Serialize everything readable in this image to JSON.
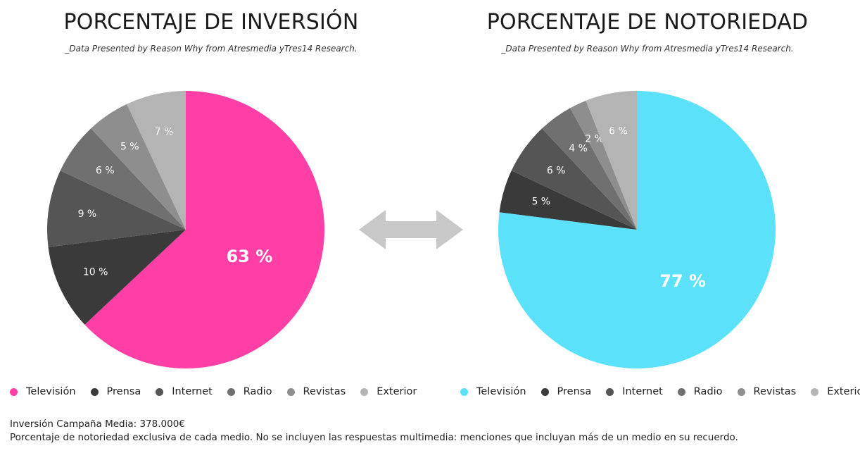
{
  "chart_data": [
    {
      "type": "pie",
      "title": "PORCENTAJE DE INVERSIÓN",
      "subtitle": "_Data Presented by Reason Why from Atresmedia yTres14 Research.",
      "categories": [
        "Televisión",
        "Prensa",
        "Internet",
        "Radio",
        "Revistas",
        "Exterior"
      ],
      "values": [
        63,
        10,
        9,
        6,
        5,
        7
      ],
      "value_labels": [
        "63 %",
        "10 %",
        "9 %",
        "6 %",
        "5 %",
        "7 %"
      ],
      "colors": [
        "#ff3fa5",
        "#3a3a3a",
        "#555555",
        "#707070",
        "#8e8e8e",
        "#b4b4b4"
      ],
      "legend": "bottom"
    },
    {
      "type": "pie",
      "title": "PORCENTAJE DE NOTORIEDAD",
      "subtitle": "_Data Presented by Reason Why from Atresmedia yTres14 Research.",
      "categories": [
        "Televisión",
        "Prensa",
        "Internet",
        "Radio",
        "Revistas",
        "Exterior"
      ],
      "values": [
        77,
        5,
        6,
        4,
        2,
        6
      ],
      "value_labels": [
        "77 %",
        "5 %",
        "6 %",
        "4 %",
        "2 %",
        "6 %"
      ],
      "colors": [
        "#5ce1fb",
        "#3a3a3a",
        "#555555",
        "#707070",
        "#8e8e8e",
        "#b4b4b4"
      ],
      "legend": "bottom"
    }
  ],
  "arrow_icon": "double-arrow-icon",
  "footer": {
    "line1": "Inversión Campaña Media: 378.000€",
    "line2": "Porcentaje de notoriedad exclusiva de cada medio. No se incluyen las respuestas multimedia: menciones que incluyan más de un medio en su recuerdo."
  }
}
